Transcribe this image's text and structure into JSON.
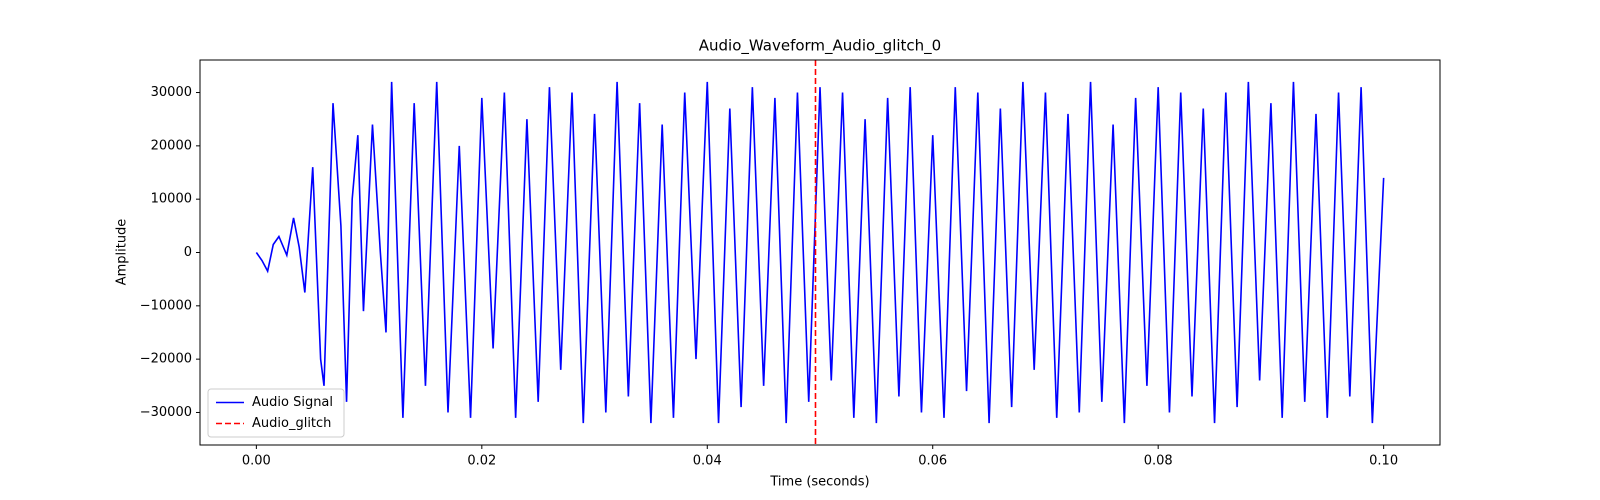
{
  "chart_data": {
    "type": "line",
    "title": "Audio_Waveform_Audio_glitch_0",
    "xlabel": "Time (seconds)",
    "ylabel": "Amplitude",
    "x": [
      0,
      0.0005,
      0.001,
      0.0015,
      0.002,
      0.0027,
      0.0033,
      0.0038,
      0.0043,
      0.005,
      0.0057,
      0.006,
      0.0068,
      0.0075,
      0.008,
      0.0085,
      0.009,
      0.0095,
      0.0103,
      0.011,
      0.0115,
      0.012,
      0.013,
      0.014,
      0.015,
      0.016,
      0.017,
      0.018,
      0.019,
      0.02,
      0.021,
      0.022,
      0.023,
      0.024,
      0.025,
      0.026,
      0.027,
      0.028,
      0.029,
      0.03,
      0.031,
      0.032,
      0.033,
      0.034,
      0.035,
      0.036,
      0.037,
      0.038,
      0.039,
      0.04,
      0.041,
      0.042,
      0.043,
      0.044,
      0.045,
      0.046,
      0.047,
      0.048,
      0.049,
      0.05,
      0.051,
      0.052,
      0.053,
      0.054,
      0.055,
      0.056,
      0.057,
      0.058,
      0.059,
      0.06,
      0.061,
      0.062,
      0.063,
      0.064,
      0.065,
      0.066,
      0.067,
      0.068,
      0.069,
      0.07,
      0.071,
      0.072,
      0.073,
      0.074,
      0.075,
      0.076,
      0.077,
      0.078,
      0.079,
      0.08,
      0.081,
      0.082,
      0.083,
      0.084,
      0.085,
      0.086,
      0.087,
      0.088,
      0.089,
      0.09,
      0.091,
      0.092,
      0.093,
      0.094,
      0.095,
      0.096,
      0.097,
      0.098,
      0.099,
      0.1
    ],
    "series": [
      {
        "name": "Audio Signal",
        "color": "#0000ff",
        "values": [
          0,
          -1500,
          -3500,
          1500,
          3000,
          -500,
          6500,
          1000,
          -7500,
          16000,
          -20000,
          -25000,
          28000,
          5000,
          -28000,
          10000,
          22000,
          -11000,
          24000,
          0,
          -15000,
          32000,
          -31000,
          28000,
          -25000,
          32000,
          -30000,
          20000,
          -31000,
          29000,
          -18000,
          30000,
          -31000,
          25000,
          -28000,
          31000,
          -22000,
          30000,
          -32000,
          26000,
          -30000,
          32000,
          -27000,
          28000,
          -32000,
          24000,
          -31000,
          30000,
          -20000,
          32000,
          -32000,
          27000,
          -29000,
          31000,
          -25000,
          29000,
          -32000,
          30000,
          -28000,
          31000,
          -24000,
          30000,
          -31000,
          25000,
          -32000,
          29000,
          -27000,
          31000,
          -30000,
          22000,
          -31000,
          31000,
          -26000,
          30000,
          -32000,
          27000,
          -29000,
          32000,
          -22000,
          30000,
          -31000,
          26000,
          -30000,
          32000,
          -28000,
          24000,
          -32000,
          29000,
          -25000,
          31000,
          -30000,
          30000,
          -27000,
          27000,
          -32000,
          30000,
          -29000,
          32000,
          -24000,
          28000,
          -31000,
          32000,
          -28000,
          26000,
          -31000,
          30000,
          -27000,
          31000,
          -32000,
          14000
        ]
      }
    ],
    "vlines": [
      {
        "name": "Audio_glitch",
        "x": 0.0496,
        "color": "#ff0000"
      }
    ],
    "xlim": [
      -0.005,
      0.105
    ],
    "ylim": [
      -36100,
      36100
    ],
    "xticks": [
      {
        "value": 0,
        "label": "0.00"
      },
      0.02,
      0.04,
      0.06,
      0.08,
      {
        "value": 0.1,
        "label": "0.10"
      }
    ],
    "yticks": [
      {
        "value": -30000,
        "label": "−30000"
      },
      {
        "value": -20000,
        "label": "−20000"
      },
      {
        "value": -10000,
        "label": "−10000"
      },
      0,
      10000,
      20000,
      30000
    ],
    "legend": "lower left"
  }
}
